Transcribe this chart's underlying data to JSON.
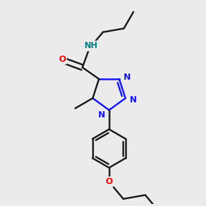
{
  "background_color": "#ebebeb",
  "bond_color": "#1a1a1a",
  "nitrogen_color": "#1414ff",
  "oxygen_color": "#ff0000",
  "nh_color": "#008080",
  "bond_width": 1.8,
  "figsize": [
    3.0,
    3.0
  ],
  "dpi": 100,
  "xlim": [
    0,
    10
  ],
  "ylim": [
    0,
    10
  ]
}
